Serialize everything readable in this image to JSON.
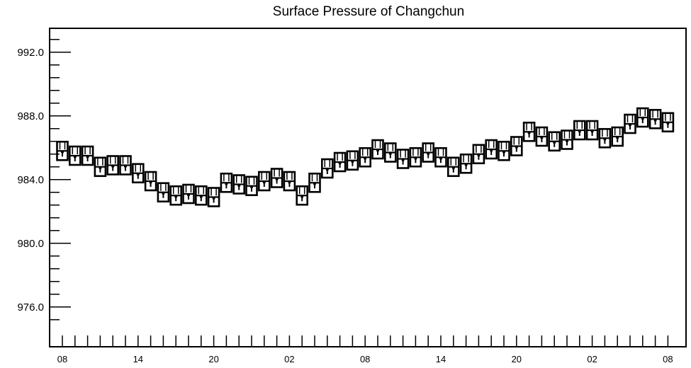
{
  "chart_data": {
    "type": "scatter",
    "title": "Surface Pressure of Changchun",
    "xlabel": "",
    "ylabel": "",
    "ylim": [
      973.5,
      993.5
    ],
    "y_ticks": [
      976.0,
      980.0,
      984.0,
      988.0,
      992.0
    ],
    "y_tick_labels": [
      "976.0",
      "980.0",
      "984.0",
      "988.0",
      "992.0"
    ],
    "x_tick_labels": [
      "08",
      "14",
      "20",
      "02",
      "08",
      "14",
      "20",
      "02",
      "08"
    ],
    "x_label_every": 6,
    "minor_ticks_per_major_y": 5,
    "grid": false,
    "legend": "none",
    "marker": "box-whisker",
    "color": "#000000",
    "series": [
      {
        "values": [
          985.8,
          985.5,
          985.5,
          984.8,
          984.9,
          984.9,
          984.4,
          983.9,
          983.2,
          983.0,
          983.1,
          983.0,
          982.9,
          983.8,
          983.7,
          983.6,
          983.9,
          984.1,
          983.9,
          983.0,
          983.8,
          984.7,
          985.1,
          985.2,
          985.4,
          985.9,
          985.7,
          985.3,
          985.4,
          985.7,
          985.4,
          984.8,
          985.0,
          985.6,
          985.9,
          985.8,
          986.1,
          987.0,
          986.7,
          986.4,
          986.5,
          987.1,
          987.1,
          986.6,
          986.7,
          987.5,
          987.9,
          987.8,
          987.6
        ]
      }
    ]
  }
}
